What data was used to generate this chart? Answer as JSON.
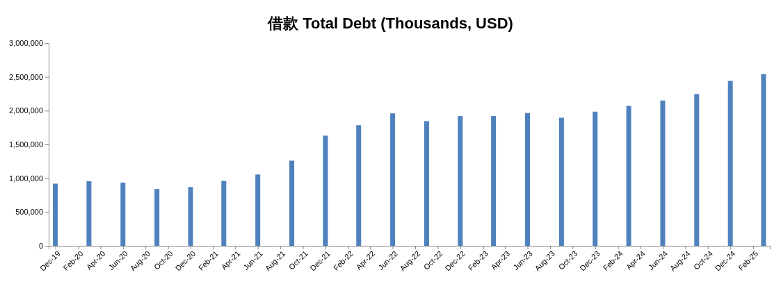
{
  "chart_data": {
    "type": "bar",
    "title": "借款 Total Debt (Thousands, USD)",
    "x": [
      "2019-12",
      "2020-03",
      "2020-06",
      "2020-09",
      "2020-12",
      "2021-03",
      "2021-06",
      "2021-09",
      "2021-12",
      "2022-03",
      "2022-06",
      "2022-09",
      "2022-12",
      "2023-03",
      "2023-06",
      "2023-09",
      "2023-12",
      "2024-03",
      "2024-06",
      "2024-09",
      "2024-12",
      "2025-03"
    ],
    "values": [
      920000,
      955000,
      935000,
      840000,
      870000,
      960000,
      1055000,
      1260000,
      1630000,
      1785000,
      1960000,
      1845000,
      1920000,
      1920000,
      1965000,
      1895000,
      1985000,
      2070000,
      2150000,
      2245000,
      2440000,
      2540000
    ],
    "color": "#4f81bd",
    "xlim": [
      "2019-11-13",
      "2025-03-18"
    ],
    "xticks": [
      {
        "value": "2019-12",
        "label": "Dec-19"
      },
      {
        "value": "2020-02",
        "label": "Feb-20"
      },
      {
        "value": "2020-04",
        "label": "Apr-20"
      },
      {
        "value": "2020-06",
        "label": "Jun-20"
      },
      {
        "value": "2020-08",
        "label": "Aug-20"
      },
      {
        "value": "2020-10",
        "label": "Oct-20"
      },
      {
        "value": "2020-12",
        "label": "Dec-20"
      },
      {
        "value": "2021-02",
        "label": "Feb-21"
      },
      {
        "value": "2021-04",
        "label": "Apr-21"
      },
      {
        "value": "2021-06",
        "label": "Jun-21"
      },
      {
        "value": "2021-08",
        "label": "Aug-21"
      },
      {
        "value": "2021-10",
        "label": "Oct-21"
      },
      {
        "value": "2021-12",
        "label": "Dec-21"
      },
      {
        "value": "2022-02",
        "label": "Feb-22"
      },
      {
        "value": "2022-04",
        "label": "Apr-22"
      },
      {
        "value": "2022-06",
        "label": "Jun-22"
      },
      {
        "value": "2022-08",
        "label": "Aug-22"
      },
      {
        "value": "2022-10",
        "label": "Oct-22"
      },
      {
        "value": "2022-12",
        "label": "Dec-22"
      },
      {
        "value": "2023-02",
        "label": "Feb-23"
      },
      {
        "value": "2023-04",
        "label": "Apr-23"
      },
      {
        "value": "2023-06",
        "label": "Jun-23"
      },
      {
        "value": "2023-08",
        "label": "Aug-23"
      },
      {
        "value": "2023-10",
        "label": "Oct-23"
      },
      {
        "value": "2023-12",
        "label": "Dec-23"
      },
      {
        "value": "2024-02",
        "label": "Feb-24"
      },
      {
        "value": "2024-04",
        "label": "Apr-24"
      },
      {
        "value": "2024-06",
        "label": "Jun-24"
      },
      {
        "value": "2024-08",
        "label": "Aug-24"
      },
      {
        "value": "2024-10",
        "label": "Oct-24"
      },
      {
        "value": "2024-12",
        "label": "Dec-24"
      },
      {
        "value": "2025-02",
        "label": "Feb-25"
      }
    ],
    "ylim": [
      0,
      3000000
    ],
    "yticks": [
      0,
      {
        "value": 500000,
        "label": "500,000"
      },
      {
        "value": 1000000,
        "label": "1,000,000"
      },
      {
        "value": 1500000,
        "label": "1,500,000"
      },
      {
        "value": 2000000,
        "label": "2,000,000"
      },
      {
        "value": 2500000,
        "label": "2,500,000"
      },
      {
        "value": 3000000,
        "label": "3,000,000"
      }
    ]
  }
}
